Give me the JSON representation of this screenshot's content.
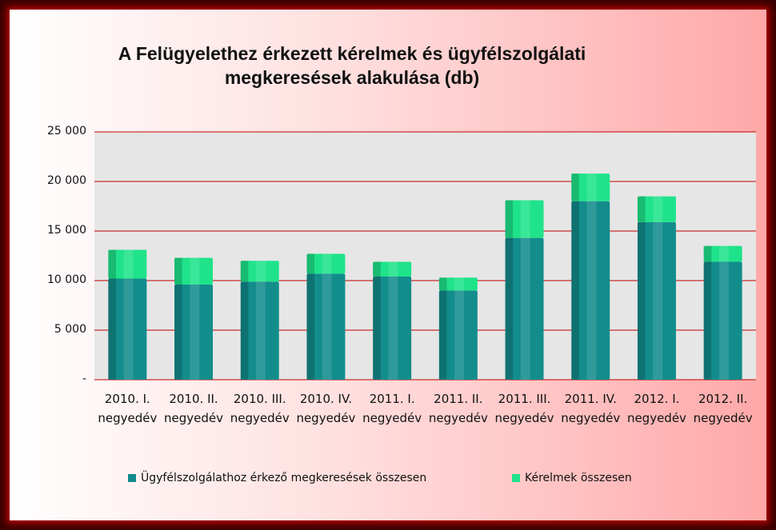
{
  "chart_data": {
    "type": "stacked_bar",
    "title": "A Felügyelethez érkezett kérelmek és ügyfélszolgálati megkeresések alakulása (db)",
    "categories": [
      "2010. I. negyedév",
      "2010. II. negyedév",
      "2010. III. negyedév",
      "2010. IV. negyedév",
      "2011. I. negyedév",
      "2011. II. negyedév",
      "2011. III. negyedév",
      "2011. IV. negyedév",
      "2012. I. negyedév",
      "2012. II. negyedév"
    ],
    "series": [
      {
        "name": "Ügyfélszolgálathoz érkező megkeresések összesen",
        "color": "#138c8c",
        "values": [
          10200,
          9600,
          9900,
          10700,
          10400,
          9000,
          14300,
          18000,
          15900,
          11900
        ]
      },
      {
        "name": "Kérelmek összesen",
        "color": "#1fe38a",
        "values": [
          2900,
          2700,
          2100,
          2000,
          1500,
          1300,
          3800,
          2800,
          2600,
          1600
        ]
      }
    ],
    "ylim": [
      0,
      25000
    ],
    "yticks": [
      {
        "value": 0,
        "label": "-"
      },
      {
        "value": 5000,
        "label": "5 000"
      },
      {
        "value": 10000,
        "label": "10 000"
      },
      {
        "value": 15000,
        "label": "15 000"
      },
      {
        "value": 20000,
        "label": "20 000"
      },
      {
        "value": 25000,
        "label": "25 000"
      }
    ],
    "grid": true,
    "legend": "bottom"
  }
}
